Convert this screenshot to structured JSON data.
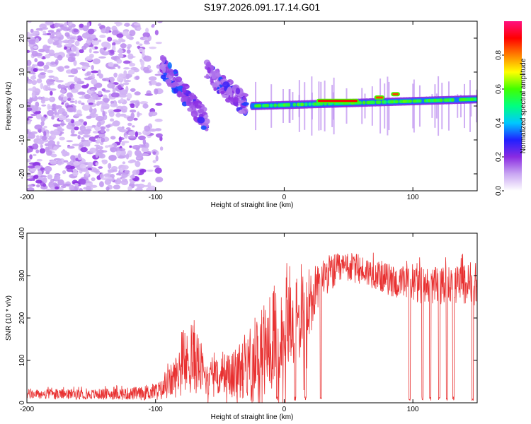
{
  "title": "S197.2026.091.17.14.G01",
  "colors": {
    "snr_line": "#e83030",
    "frame": "#000000",
    "colorbar_stops": [
      "#ffffff",
      "#c9a6f2",
      "#8a2be2",
      "#2020ff",
      "#00c8ff",
      "#00ff80",
      "#40ff00",
      "#ffff00",
      "#ff8000",
      "#ff0000",
      "#ff1080"
    ]
  },
  "chart_data": [
    {
      "type": "heatmap",
      "title": "S197.2026.091.17.14.G01",
      "xlabel": "Height of straight line (km)",
      "ylabel": "Frequency (Hz)",
      "xlim": [
        -200,
        150
      ],
      "ylim": [
        -25,
        25
      ],
      "x_ticks": [
        -200,
        -100,
        0,
        100
      ],
      "x_tick_labels": [
        "-200",
        "-100",
        "0",
        "100"
      ],
      "y_ticks": [
        -20,
        -10,
        0,
        10,
        20
      ],
      "y_tick_labels": [
        "-20",
        "-10",
        "0",
        "10",
        "20"
      ],
      "colorbar": {
        "label": "Normalized spectral amplitude",
        "range": [
          0,
          1
        ],
        "ticks": [
          0,
          0.2,
          0.4,
          0.6,
          0.8
        ],
        "tick_labels": [
          "0.0",
          "0.2",
          "0.4",
          "0.6",
          "0.8"
        ]
      },
      "features": [
        {
          "name": "noise",
          "x_range": [
            -200,
            -95
          ],
          "freq_range": [
            -25,
            25
          ],
          "amplitude": 0.15
        },
        {
          "name": "band-1",
          "x_range": [
            -95,
            -60
          ],
          "freq_start": 12,
          "freq_end": -5,
          "amplitude": 0.3
        },
        {
          "name": "band-2",
          "x_range": [
            -60,
            -30
          ],
          "freq_start": 10,
          "freq_end": 0,
          "amplitude": 0.3
        },
        {
          "name": "main-trace",
          "x_range": [
            -25,
            150
          ],
          "freq_start": 0,
          "freq_end": 2,
          "amplitude": 0.6
        },
        {
          "name": "peak-1",
          "x_range": [
            25,
            58
          ],
          "freq": 1.5,
          "amplitude": 0.9
        },
        {
          "name": "peak-2",
          "x_range": [
            70,
            78
          ],
          "freq": 2.5,
          "amplitude": 0.85
        },
        {
          "name": "peak-3",
          "x_range": [
            83,
            90
          ],
          "freq": 3.5,
          "amplitude": 0.85
        }
      ]
    },
    {
      "type": "line",
      "xlabel": "Height of straight line (km)",
      "ylabel": "SNR (10 * v/v)",
      "xlim": [
        -200,
        150
      ],
      "ylim": [
        0,
        400
      ],
      "x_ticks": [
        -200,
        -100,
        0,
        100
      ],
      "x_tick_labels": [
        "-200",
        "-100",
        "0",
        "100"
      ],
      "y_ticks": [
        0,
        100,
        200,
        300,
        400
      ],
      "y_tick_labels": [
        "0",
        "100",
        "200",
        "300",
        "400"
      ],
      "series": [
        {
          "name": "SNR",
          "envelope_x": [
            -200,
            -150,
            -110,
            -95,
            -85,
            -70,
            -60,
            -45,
            -30,
            -20,
            -10,
            0,
            10,
            20,
            25,
            30,
            50,
            70,
            90,
            100,
            120,
            150
          ],
          "envelope_mean": [
            20,
            20,
            22,
            30,
            60,
            110,
            55,
            65,
            80,
            110,
            150,
            170,
            190,
            240,
            265,
            300,
            320,
            305,
            280,
            280,
            275,
            280
          ],
          "envelope_spread": [
            15,
            15,
            20,
            30,
            60,
            110,
            50,
            60,
            90,
            140,
            150,
            130,
            130,
            120,
            70,
            60,
            45,
            45,
            50,
            55,
            55,
            65
          ],
          "dropouts": [
            [
              -6,
              -5
            ],
            [
              8,
              9
            ],
            [
              16,
              17
            ],
            [
              28,
              29
            ],
            [
              97,
              98
            ],
            [
              107,
              108
            ],
            [
              113,
              114
            ],
            [
              120,
              121
            ],
            [
              126,
              127
            ],
            [
              131,
              132
            ],
            [
              146,
              147
            ]
          ]
        }
      ]
    }
  ]
}
